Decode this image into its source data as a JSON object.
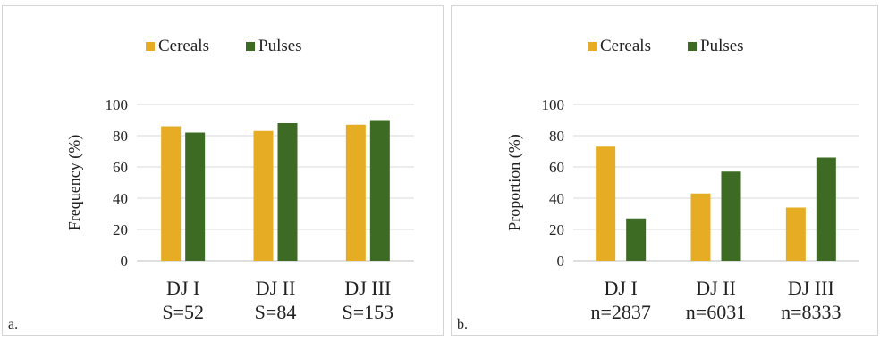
{
  "colors": {
    "cereals": "#e6ad24",
    "pulses": "#3d6b24",
    "grid": "#d9d9d9",
    "axis": "#bfbfbf"
  },
  "chart_data": [
    {
      "type": "bar",
      "panel_label": "a.",
      "ylabel": "Frequency (%)",
      "ylim": [
        0,
        100
      ],
      "yticks": [
        0,
        20,
        40,
        60,
        80,
        100
      ],
      "grid": true,
      "legend_position": "top",
      "categories": [
        "DJ I",
        "DJ II",
        "DJ III"
      ],
      "category_sublabels": [
        "S=52",
        "S=84",
        "S=153"
      ],
      "series": [
        {
          "name": "Cereals",
          "values": [
            86,
            83,
            87
          ]
        },
        {
          "name": "Pulses",
          "values": [
            82,
            88,
            90
          ]
        }
      ]
    },
    {
      "type": "bar",
      "panel_label": "b.",
      "ylabel": "Proportion (%)",
      "ylim": [
        0,
        100
      ],
      "yticks": [
        0,
        20,
        40,
        60,
        80,
        100
      ],
      "grid": true,
      "legend_position": "top",
      "categories": [
        "DJ I",
        "DJ II",
        "DJ III"
      ],
      "category_sublabels": [
        "n=2837",
        "n=6031",
        "n=8333"
      ],
      "series": [
        {
          "name": "Cereals",
          "values": [
            73,
            43,
            34
          ]
        },
        {
          "name": "Pulses",
          "values": [
            27,
            57,
            66
          ]
        }
      ]
    }
  ]
}
